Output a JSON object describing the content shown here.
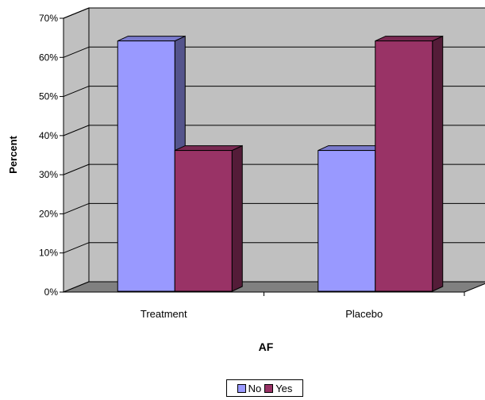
{
  "chart_data": {
    "type": "bar",
    "categories": [
      "Treatment",
      "Placebo"
    ],
    "series": [
      {
        "name": "No",
        "values": [
          64,
          36
        ],
        "color": "#9999FF"
      },
      {
        "name": "Yes",
        "values": [
          36,
          64
        ],
        "color": "#993366"
      }
    ],
    "xlabel": "AF",
    "ylabel": "Percent",
    "ylim": [
      0,
      70
    ],
    "yticks": [
      0,
      10,
      20,
      30,
      40,
      50,
      60,
      70
    ],
    "ytick_format": "percent",
    "grid": true,
    "legend_position": "bottom",
    "style": "3d",
    "wall_color": "#C0C0C0",
    "floor_color": "#808080"
  }
}
